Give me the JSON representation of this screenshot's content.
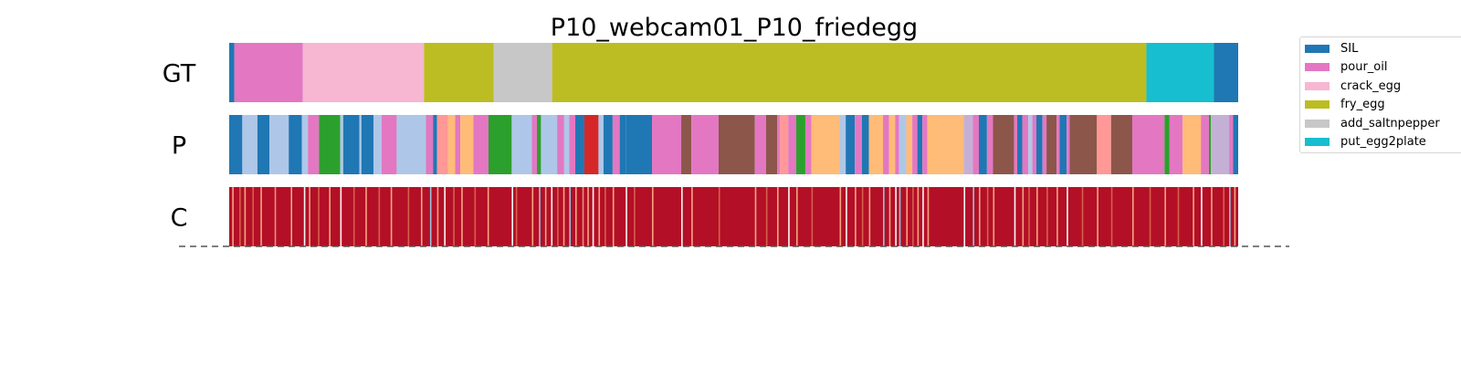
{
  "title": "P10_webcam01_P10_friedegg",
  "chart_data": {
    "type": "segmentation",
    "title": "P10_webcam01_P10_friedegg",
    "xlim": [
      0,
      1000
    ],
    "rows": [
      {
        "label": "GT",
        "kind": "segments",
        "segments": [
          {
            "start": 0,
            "end": 5,
            "class": "SIL"
          },
          {
            "start": 5,
            "end": 73,
            "class": "pour_oil"
          },
          {
            "start": 73,
            "end": 193,
            "class": "crack_egg"
          },
          {
            "start": 193,
            "end": 262,
            "class": "fry_egg"
          },
          {
            "start": 262,
            "end": 320,
            "class": "add_saltnpepper"
          },
          {
            "start": 320,
            "end": 909,
            "class": "fry_egg"
          },
          {
            "start": 909,
            "end": 976,
            "class": "put_egg2plate"
          },
          {
            "start": 976,
            "end": 1000,
            "class": "SIL"
          }
        ]
      },
      {
        "label": "P",
        "kind": "segments",
        "segments": [
          {
            "start": 0,
            "end": 13,
            "color": "#1f77b4"
          },
          {
            "start": 13,
            "end": 28,
            "color": "#aec7e8"
          },
          {
            "start": 28,
            "end": 40,
            "color": "#1f77b4"
          },
          {
            "start": 40,
            "end": 59,
            "color": "#aec7e8"
          },
          {
            "start": 59,
            "end": 72,
            "color": "#1f77b4"
          },
          {
            "start": 72,
            "end": 78,
            "color": "#aec7e8"
          },
          {
            "start": 78,
            "end": 89,
            "color": "#e377c2"
          },
          {
            "start": 89,
            "end": 110,
            "color": "#2ca02c"
          },
          {
            "start": 110,
            "end": 113,
            "color": "#aec7e8"
          },
          {
            "start": 113,
            "end": 129,
            "color": "#1f77b4"
          },
          {
            "start": 129,
            "end": 131,
            "color": "#aec7e8"
          },
          {
            "start": 131,
            "end": 143,
            "color": "#1f77b4"
          },
          {
            "start": 143,
            "end": 151,
            "color": "#aec7e8"
          },
          {
            "start": 151,
            "end": 166,
            "color": "#e377c2"
          },
          {
            "start": 166,
            "end": 195,
            "color": "#aec7e8"
          },
          {
            "start": 195,
            "end": 202,
            "color": "#e377c2"
          },
          {
            "start": 202,
            "end": 206,
            "color": "#1f77b4"
          },
          {
            "start": 206,
            "end": 217,
            "color": "#ff9896"
          },
          {
            "start": 217,
            "end": 224,
            "color": "#ffbb78"
          },
          {
            "start": 224,
            "end": 229,
            "color": "#e377c2"
          },
          {
            "start": 229,
            "end": 242,
            "color": "#ffbb78"
          },
          {
            "start": 242,
            "end": 257,
            "color": "#e377c2"
          },
          {
            "start": 257,
            "end": 280,
            "color": "#2ca02c"
          },
          {
            "start": 280,
            "end": 300,
            "color": "#aec7e8"
          },
          {
            "start": 300,
            "end": 305,
            "color": "#e377c2"
          },
          {
            "start": 305,
            "end": 309,
            "color": "#2ca02c"
          },
          {
            "start": 309,
            "end": 325,
            "color": "#aec7e8"
          },
          {
            "start": 325,
            "end": 332,
            "color": "#e377c2"
          },
          {
            "start": 332,
            "end": 337,
            "color": "#aec7e8"
          },
          {
            "start": 337,
            "end": 343,
            "color": "#e377c2"
          },
          {
            "start": 343,
            "end": 352,
            "color": "#1f77b4"
          },
          {
            "start": 352,
            "end": 366,
            "color": "#d62728"
          },
          {
            "start": 366,
            "end": 371,
            "color": "#aec7e8"
          },
          {
            "start": 371,
            "end": 380,
            "color": "#1f77b4"
          },
          {
            "start": 380,
            "end": 387,
            "color": "#e377c2"
          },
          {
            "start": 387,
            "end": 393,
            "color": "#1f77b4"
          },
          {
            "start": 393,
            "end": 419,
            "color": "#1f77b4"
          },
          {
            "start": 419,
            "end": 448,
            "color": "#e377c2"
          },
          {
            "start": 448,
            "end": 458,
            "color": "#8c564b"
          },
          {
            "start": 458,
            "end": 485,
            "color": "#e377c2"
          },
          {
            "start": 485,
            "end": 521,
            "color": "#8c564b"
          },
          {
            "start": 521,
            "end": 532,
            "color": "#e377c2"
          },
          {
            "start": 532,
            "end": 543,
            "color": "#8c564b"
          },
          {
            "start": 543,
            "end": 546,
            "color": "#e377c2"
          },
          {
            "start": 546,
            "end": 554,
            "color": "#ff9896"
          },
          {
            "start": 554,
            "end": 562,
            "color": "#e377c2"
          },
          {
            "start": 562,
            "end": 571,
            "color": "#2ca02c"
          },
          {
            "start": 571,
            "end": 577,
            "color": "#e377c2"
          },
          {
            "start": 577,
            "end": 605,
            "color": "#ffbb78"
          },
          {
            "start": 605,
            "end": 611,
            "color": "#aec7e8"
          },
          {
            "start": 611,
            "end": 620,
            "color": "#1f77b4"
          },
          {
            "start": 620,
            "end": 627,
            "color": "#e377c2"
          },
          {
            "start": 627,
            "end": 634,
            "color": "#1f77b4"
          },
          {
            "start": 634,
            "end": 648,
            "color": "#ffbb78"
          },
          {
            "start": 648,
            "end": 654,
            "color": "#e377c2"
          },
          {
            "start": 654,
            "end": 660,
            "color": "#ffbb78"
          },
          {
            "start": 660,
            "end": 664,
            "color": "#e377c2"
          },
          {
            "start": 664,
            "end": 671,
            "color": "#aec7e8"
          },
          {
            "start": 671,
            "end": 677,
            "color": "#ffbb78"
          },
          {
            "start": 677,
            "end": 682,
            "color": "#e377c2"
          },
          {
            "start": 682,
            "end": 687,
            "color": "#1f77b4"
          },
          {
            "start": 687,
            "end": 692,
            "color": "#e377c2"
          },
          {
            "start": 692,
            "end": 728,
            "color": "#ffbb78"
          },
          {
            "start": 728,
            "end": 737,
            "color": "#c5b0d5"
          },
          {
            "start": 737,
            "end": 743,
            "color": "#e377c2"
          },
          {
            "start": 743,
            "end": 751,
            "color": "#1f77b4"
          },
          {
            "start": 751,
            "end": 757,
            "color": "#e377c2"
          },
          {
            "start": 757,
            "end": 778,
            "color": "#8c564b"
          },
          {
            "start": 778,
            "end": 781,
            "color": "#e377c2"
          },
          {
            "start": 781,
            "end": 786,
            "color": "#1f77b4"
          },
          {
            "start": 786,
            "end": 792,
            "color": "#e377c2"
          },
          {
            "start": 792,
            "end": 796,
            "color": "#aec7e8"
          },
          {
            "start": 796,
            "end": 800,
            "color": "#e377c2"
          },
          {
            "start": 800,
            "end": 806,
            "color": "#1f77b4"
          },
          {
            "start": 806,
            "end": 810,
            "color": "#e377c2"
          },
          {
            "start": 810,
            "end": 820,
            "color": "#8c564b"
          },
          {
            "start": 820,
            "end": 823,
            "color": "#e377c2"
          },
          {
            "start": 823,
            "end": 830,
            "color": "#1f77b4"
          },
          {
            "start": 830,
            "end": 833,
            "color": "#e377c2"
          },
          {
            "start": 833,
            "end": 860,
            "color": "#8c564b"
          },
          {
            "start": 860,
            "end": 874,
            "color": "#ff9896"
          },
          {
            "start": 874,
            "end": 895,
            "color": "#8c564b"
          },
          {
            "start": 895,
            "end": 927,
            "color": "#e377c2"
          },
          {
            "start": 927,
            "end": 932,
            "color": "#2ca02c"
          },
          {
            "start": 932,
            "end": 945,
            "color": "#e377c2"
          },
          {
            "start": 945,
            "end": 963,
            "color": "#ffbb78"
          },
          {
            "start": 963,
            "end": 971,
            "color": "#e377c2"
          },
          {
            "start": 971,
            "end": 973,
            "color": "#2ca02c"
          },
          {
            "start": 973,
            "end": 991,
            "color": "#c5b0d5"
          },
          {
            "start": 991,
            "end": 995,
            "color": "#e377c2"
          },
          {
            "start": 995,
            "end": 1000,
            "color": "#1f77b4"
          }
        ]
      },
      {
        "label": "C",
        "kind": "confidence",
        "base_color": "#b30f26",
        "highlights": [
          {
            "x": 3,
            "color": "#f4a582"
          },
          {
            "x": 10,
            "color": "#d6604d"
          },
          {
            "x": 15,
            "color": "#f4a582"
          },
          {
            "x": 23,
            "color": "#d6604d"
          },
          {
            "x": 31,
            "color": "#f4a582"
          },
          {
            "x": 45,
            "color": "#e7927a"
          },
          {
            "x": 61,
            "color": "#f4a582"
          },
          {
            "x": 74,
            "color": "#f7f7f7"
          },
          {
            "x": 79,
            "color": "#f4a582"
          },
          {
            "x": 88,
            "color": "#d6604d"
          },
          {
            "x": 99,
            "color": "#f4a582"
          },
          {
            "x": 110,
            "color": "#f7f7f7"
          },
          {
            "x": 123,
            "color": "#d6604d"
          },
          {
            "x": 135,
            "color": "#f4a582"
          },
          {
            "x": 148,
            "color": "#d6604d"
          },
          {
            "x": 160,
            "color": "#f4a582"
          },
          {
            "x": 177,
            "color": "#d6604d"
          },
          {
            "x": 190,
            "color": "#f4a582"
          },
          {
            "x": 199,
            "color": "#92c5de"
          },
          {
            "x": 206,
            "color": "#f4a582"
          },
          {
            "x": 213,
            "color": "#f7f7f7"
          },
          {
            "x": 222,
            "color": "#d6604d"
          },
          {
            "x": 230,
            "color": "#f4a582"
          },
          {
            "x": 243,
            "color": "#d6604d"
          },
          {
            "x": 256,
            "color": "#f4a582"
          },
          {
            "x": 280,
            "color": "#f7f7f7"
          },
          {
            "x": 284,
            "color": "#d6604d"
          },
          {
            "x": 300,
            "color": "#f4a582"
          },
          {
            "x": 307,
            "color": "#92c5de"
          },
          {
            "x": 313,
            "color": "#f4a582"
          },
          {
            "x": 319,
            "color": "#f7f7f7"
          },
          {
            "x": 325,
            "color": "#d6604d"
          },
          {
            "x": 331,
            "color": "#f4a582"
          },
          {
            "x": 337,
            "color": "#92c5de"
          },
          {
            "x": 343,
            "color": "#f4a582"
          },
          {
            "x": 350,
            "color": "#e7927a"
          },
          {
            "x": 355,
            "color": "#f4a582"
          },
          {
            "x": 360,
            "color": "#f7f7f7"
          },
          {
            "x": 366,
            "color": "#f4a582"
          },
          {
            "x": 372,
            "color": "#d6604d"
          },
          {
            "x": 380,
            "color": "#f4a582"
          },
          {
            "x": 393,
            "color": "#f7f7f7"
          },
          {
            "x": 401,
            "color": "#d6604d"
          },
          {
            "x": 419,
            "color": "#f4a582"
          },
          {
            "x": 448,
            "color": "#f7f7f7"
          },
          {
            "x": 458,
            "color": "#f4a582"
          },
          {
            "x": 485,
            "color": "#d6604d"
          },
          {
            "x": 521,
            "color": "#f4a582"
          },
          {
            "x": 532,
            "color": "#d6604d"
          },
          {
            "x": 543,
            "color": "#f4a582"
          },
          {
            "x": 554,
            "color": "#f7f7f7"
          },
          {
            "x": 562,
            "color": "#f4a582"
          },
          {
            "x": 577,
            "color": "#d6604d"
          },
          {
            "x": 605,
            "color": "#f4a582"
          },
          {
            "x": 611,
            "color": "#f7f7f7"
          },
          {
            "x": 620,
            "color": "#f4a582"
          },
          {
            "x": 627,
            "color": "#d6604d"
          },
          {
            "x": 634,
            "color": "#f4a582"
          },
          {
            "x": 648,
            "color": "#92c5de"
          },
          {
            "x": 654,
            "color": "#f4a582"
          },
          {
            "x": 660,
            "color": "#f7f7f7"
          },
          {
            "x": 664,
            "color": "#92c5de"
          },
          {
            "x": 671,
            "color": "#f4a582"
          },
          {
            "x": 677,
            "color": "#d6604d"
          },
          {
            "x": 682,
            "color": "#f4a582"
          },
          {
            "x": 687,
            "color": "#f7f7f7"
          },
          {
            "x": 692,
            "color": "#f4a582"
          },
          {
            "x": 728,
            "color": "#f7f7f7"
          },
          {
            "x": 737,
            "color": "#92c5de"
          },
          {
            "x": 743,
            "color": "#f4a582"
          },
          {
            "x": 751,
            "color": "#d6604d"
          },
          {
            "x": 757,
            "color": "#f4a582"
          },
          {
            "x": 778,
            "color": "#f7f7f7"
          },
          {
            "x": 786,
            "color": "#f4a582"
          },
          {
            "x": 792,
            "color": "#d6604d"
          },
          {
            "x": 800,
            "color": "#f4a582"
          },
          {
            "x": 810,
            "color": "#d6604d"
          },
          {
            "x": 820,
            "color": "#f4a582"
          },
          {
            "x": 830,
            "color": "#f7f7f7"
          },
          {
            "x": 845,
            "color": "#d6604d"
          },
          {
            "x": 860,
            "color": "#f4a582"
          },
          {
            "x": 874,
            "color": "#d6604d"
          },
          {
            "x": 895,
            "color": "#f4a582"
          },
          {
            "x": 912,
            "color": "#d6604d"
          },
          {
            "x": 927,
            "color": "#f4a582"
          },
          {
            "x": 940,
            "color": "#d6604d"
          },
          {
            "x": 955,
            "color": "#f4a582"
          },
          {
            "x": 963,
            "color": "#f7f7f7"
          },
          {
            "x": 973,
            "color": "#f4a582"
          },
          {
            "x": 985,
            "color": "#d6604d"
          },
          {
            "x": 991,
            "color": "#92c5de"
          },
          {
            "x": 996,
            "color": "#f4a582"
          }
        ]
      }
    ],
    "legend": {
      "location": "upper-right",
      "items": [
        {
          "label": "SIL",
          "color": "#1f77b4"
        },
        {
          "label": "pour_oil",
          "color": "#e377c2"
        },
        {
          "label": "crack_egg",
          "color": "#f7b6d2"
        },
        {
          "label": "fry_egg",
          "color": "#bcbd22"
        },
        {
          "label": "add_saltnpepper",
          "color": "#c7c7c7"
        },
        {
          "label": "put_egg2plate",
          "color": "#17becf"
        }
      ]
    },
    "grid": false
  }
}
